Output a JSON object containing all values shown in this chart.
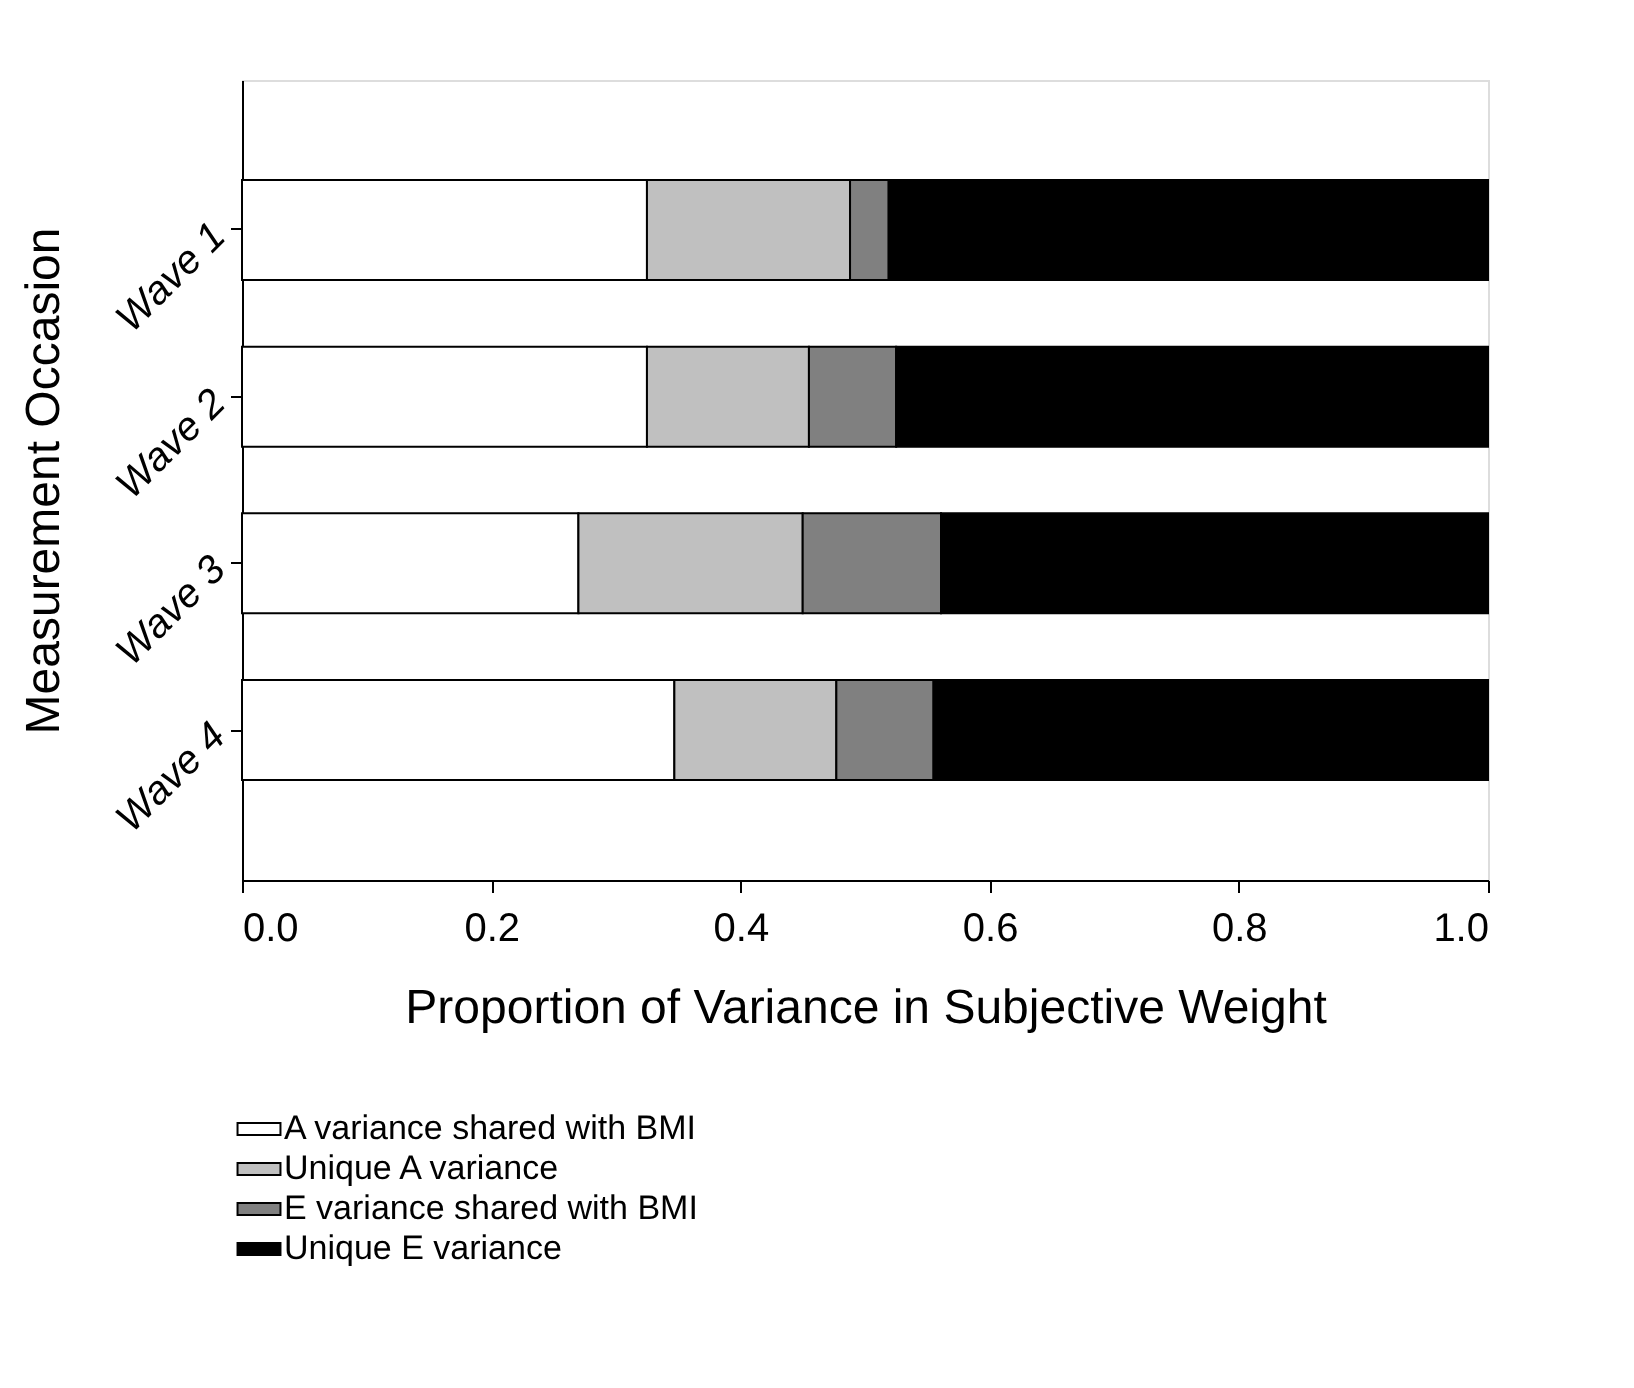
{
  "chart_data": {
    "type": "bar",
    "orientation": "horizontal",
    "stacked": true,
    "xlabel": "Proportion of Variance in Subjective Weight",
    "ylabel": "Measurement Occasion",
    "categories": [
      "Wave 1",
      "Wave 2",
      "Wave 3",
      "Wave 4"
    ],
    "series": [
      {
        "name": "A variance shared with BMI",
        "color": "#ffffff",
        "values": [
          0.325,
          0.325,
          0.27,
          0.347
        ]
      },
      {
        "name": "Unique A variance",
        "color": "#c0c0c0",
        "values": [
          0.163,
          0.13,
          0.18,
          0.13
        ]
      },
      {
        "name": "E variance shared with BMI",
        "color": "#808080",
        "values": [
          0.031,
          0.07,
          0.111,
          0.078
        ]
      },
      {
        "name": "Unique E variance",
        "color": "#000000",
        "values": [
          0.481,
          0.475,
          0.439,
          0.445
        ]
      }
    ],
    "xlim": [
      0,
      1
    ],
    "xticks": [
      {
        "value": 0,
        "label": "0.0"
      },
      {
        "value": 0.2,
        "label": "0.2"
      },
      {
        "value": 0.4,
        "label": "0.4"
      },
      {
        "value": 0.6,
        "label": "0.6"
      },
      {
        "value": 0.8,
        "label": "0.8"
      },
      {
        "value": 1,
        "label": "1.0"
      }
    ],
    "grid": false,
    "legend": "bottom"
  }
}
